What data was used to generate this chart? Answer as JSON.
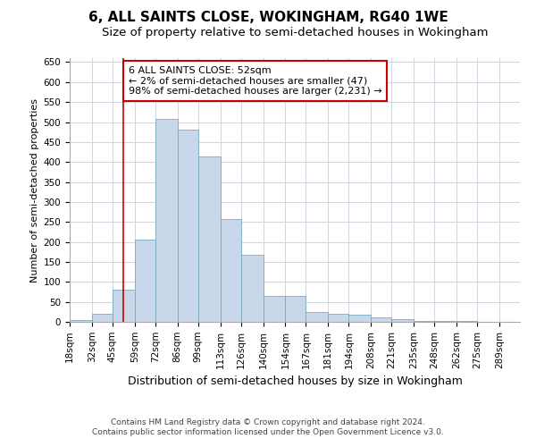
{
  "title": "6, ALL SAINTS CLOSE, WOKINGHAM, RG40 1WE",
  "subtitle": "Size of property relative to semi-detached houses in Wokingham",
  "xlabel": "Distribution of semi-detached houses by size in Wokingham",
  "ylabel": "Number of semi-detached properties",
  "footer_line1": "Contains HM Land Registry data © Crown copyright and database right 2024.",
  "footer_line2": "Contains public sector information licensed under the Open Government Licence v3.0.",
  "annotation_title": "6 ALL SAINTS CLOSE: 52sqm",
  "annotation_line2": "← 2% of semi-detached houses are smaller (47)",
  "annotation_line3": "98% of semi-detached houses are larger (2,231) →",
  "property_line_x": 52,
  "bar_categories": [
    "18sqm",
    "32sqm",
    "45sqm",
    "59sqm",
    "72sqm",
    "86sqm",
    "99sqm",
    "113sqm",
    "126sqm",
    "140sqm",
    "154sqm",
    "167sqm",
    "181sqm",
    "194sqm",
    "208sqm",
    "221sqm",
    "235sqm",
    "248sqm",
    "262sqm",
    "275sqm",
    "289sqm"
  ],
  "bar_values": [
    5,
    20,
    80,
    205,
    508,
    480,
    415,
    258,
    168,
    65,
    65,
    25,
    20,
    18,
    12,
    6,
    3,
    3,
    2,
    1,
    1
  ],
  "bar_left_edges": [
    18,
    32,
    45,
    59,
    72,
    86,
    99,
    113,
    126,
    140,
    154,
    167,
    181,
    194,
    208,
    221,
    235,
    248,
    262,
    275,
    289
  ],
  "bar_widths": [
    14,
    13,
    14,
    13,
    14,
    13,
    14,
    13,
    14,
    14,
    13,
    14,
    13,
    14,
    13,
    14,
    13,
    14,
    13,
    14,
    13
  ],
  "bar_color": "#c8d8ea",
  "bar_edge_color": "#7aaabb",
  "property_line_color": "#cc0000",
  "annotation_box_color": "#cc0000",
  "grid_color": "#c8d0dc",
  "background_color": "#ffffff",
  "ylim": [
    0,
    660
  ],
  "xlim": [
    18,
    302
  ],
  "title_fontsize": 11,
  "subtitle_fontsize": 9.5,
  "ylabel_fontsize": 8,
  "xlabel_fontsize": 9,
  "tick_fontsize": 7.5,
  "annotation_fontsize": 8,
  "footer_fontsize": 6.5
}
